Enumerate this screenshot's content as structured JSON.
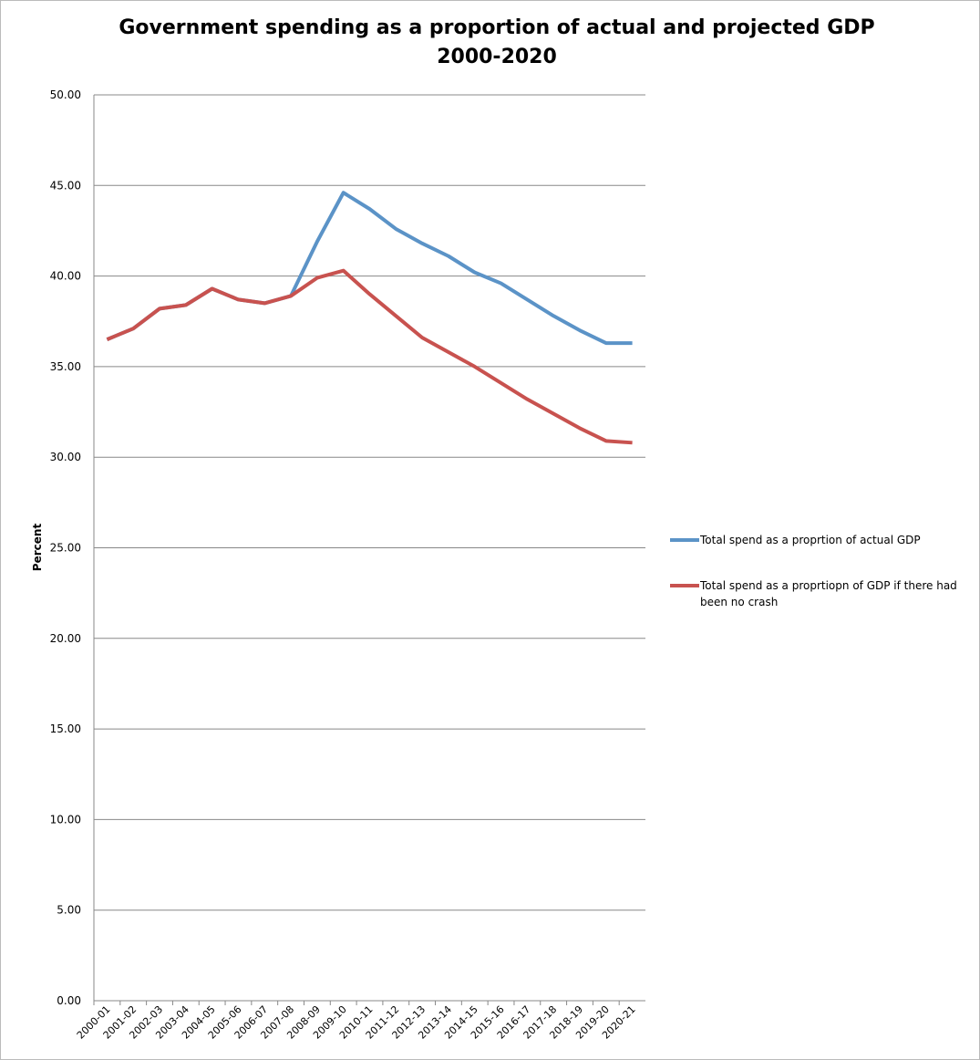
{
  "chart_data": {
    "type": "line",
    "title": "Government spending as a proportion of actual and projected GDP",
    "subtitle": "2000-2020",
    "y_label": "Percent",
    "categories": [
      "2000-01",
      "2001-02",
      "2002-03",
      "2003-04",
      "2004-05",
      "2005-06",
      "2006-07",
      "2007-08",
      "2008-09",
      "2009-10",
      "2010-11",
      "2011-12",
      "2012-13",
      "2013-14",
      "2014-15",
      "2015-16",
      "2016-17",
      "2017-18",
      "2018-19",
      "2019-20",
      "2020-21"
    ],
    "series": [
      {
        "name": "Total spend as a proprtion of actual GDP",
        "color": "#5b93c7",
        "values": [
          36.5,
          37.1,
          38.2,
          38.4,
          39.3,
          38.7,
          38.5,
          38.9,
          41.9,
          44.6,
          43.7,
          42.6,
          41.8,
          41.1,
          40.2,
          39.6,
          38.7,
          37.8,
          37.0,
          36.3,
          36.3
        ]
      },
      {
        "name": "Total spend as a proprtiopn of GDP if there had been no crash",
        "color": "#c8524f",
        "values": [
          36.5,
          37.1,
          38.2,
          38.4,
          39.3,
          38.7,
          38.5,
          38.9,
          39.9,
          40.3,
          39.0,
          37.8,
          36.6,
          35.8,
          35.0,
          34.1,
          33.2,
          32.4,
          31.6,
          30.9,
          30.8
        ]
      }
    ],
    "ylim": [
      0,
      50
    ],
    "yticks": [
      {
        "value": 0,
        "label": "0.00"
      },
      {
        "value": 5,
        "label": "5.00"
      },
      {
        "value": 10,
        "label": "10.00"
      },
      {
        "value": 15,
        "label": "15.00"
      },
      {
        "value": 20,
        "label": "20.00"
      },
      {
        "value": 25,
        "label": "25.00"
      },
      {
        "value": 30,
        "label": "30.00"
      },
      {
        "value": 35,
        "label": "35.00"
      },
      {
        "value": 40,
        "label": "40.00"
      },
      {
        "value": 45,
        "label": "45.00"
      },
      {
        "value": 50,
        "label": "50.00"
      }
    ],
    "grid": true,
    "legend": "right"
  }
}
